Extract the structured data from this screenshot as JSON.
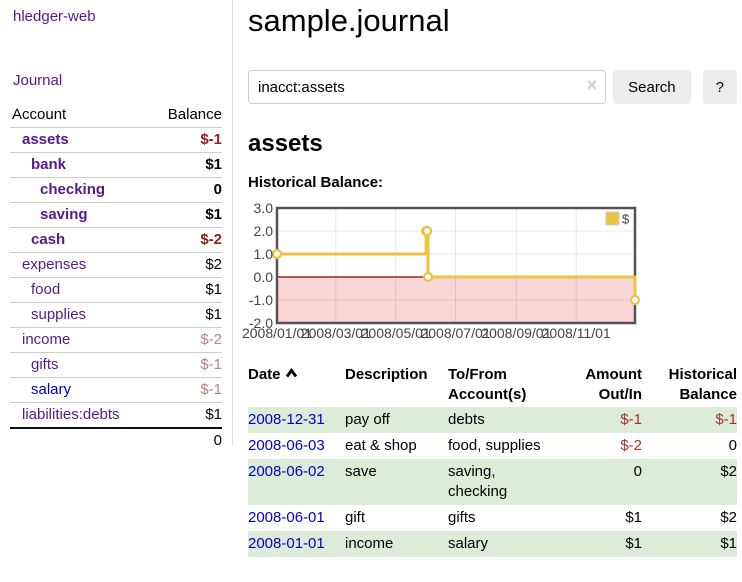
{
  "sidebar": {
    "brand": "hledger-web",
    "nav": [
      {
        "label": "Journal"
      }
    ],
    "accounts_table": {
      "headers": {
        "account": "Account",
        "balance": "Balance"
      },
      "rows": [
        {
          "name": "assets",
          "balance": "$-1"
        },
        {
          "name": "bank",
          "balance": "$1"
        },
        {
          "name": "checking",
          "balance": "0"
        },
        {
          "name": "saving",
          "balance": "$1"
        },
        {
          "name": "cash",
          "balance": "$-2"
        },
        {
          "name": "expenses",
          "balance": "$2"
        },
        {
          "name": "food",
          "balance": "$1"
        },
        {
          "name": "supplies",
          "balance": "$1"
        },
        {
          "name": "income",
          "balance": "$-2"
        },
        {
          "name": "gifts",
          "balance": "$-1"
        },
        {
          "name": "salary",
          "balance": "$-1"
        },
        {
          "name": "liabilities:debts",
          "balance": "$1"
        }
      ],
      "total": "0"
    }
  },
  "header": {
    "title": "sample.journal"
  },
  "search": {
    "value": "inacct:assets",
    "clear_icon": "×",
    "button": "Search",
    "help_button": "?"
  },
  "account_page": {
    "heading": "assets",
    "chart_label": "Historical Balance:"
  },
  "register": {
    "headers": {
      "date": "Date",
      "sort_icon": "chevron-up",
      "description": "Description",
      "accounts": "To/From Account(s)",
      "amount": "Amount Out/In",
      "balance": "Historical Balance"
    },
    "rows": [
      {
        "date": "2008-12-31",
        "description": "pay off",
        "accounts": "debts",
        "amount": "$-1",
        "balance": "$-1"
      },
      {
        "date": "2008-06-03",
        "description": "eat & shop",
        "accounts": "food, supplies",
        "amount": "$-2",
        "balance": "0"
      },
      {
        "date": "2008-06-02",
        "description": "save",
        "accounts": "saving, checking",
        "amount": "0",
        "balance": "$2"
      },
      {
        "date": "2008-06-01",
        "description": "gift",
        "accounts": "gifts",
        "amount": "$1",
        "balance": "$2"
      },
      {
        "date": "2008-01-01",
        "description": "income",
        "accounts": "salary",
        "amount": "$1",
        "balance": "$1"
      }
    ]
  },
  "colors": {
    "link_purple": "#551a8b",
    "link_blue": "#0000cc",
    "negative": "#a3312a",
    "negative_strong": "#8f231d",
    "negative_light": "#bd7e7e",
    "row_green": "#dcecd8",
    "chart_line": "#EDC240",
    "chart_negative_region": "#f9d7d7",
    "chart_zero_line": "#7a0000",
    "chart_border": "#545454"
  },
  "chart_data": {
    "type": "line",
    "title": "Historical Balance:",
    "step": true,
    "xlim": [
      "2008-01-01",
      "2008-12-31"
    ],
    "ylim": [
      -2,
      3
    ],
    "x_ticks": [
      "2008/01/01",
      "2008/03/01",
      "2008/05/01",
      "2008/07/01",
      "2008/09/01",
      "2008/11/01"
    ],
    "y_ticks": [
      3.0,
      2.0,
      1.0,
      0.0,
      -1.0,
      -2.0
    ],
    "grid": true,
    "legend": {
      "position": "top-right",
      "label": "$"
    },
    "series": [
      {
        "name": "$",
        "color": "#EDC240",
        "points": [
          [
            "2008-01-01",
            1
          ],
          [
            "2008-06-01",
            2
          ],
          [
            "2008-06-02",
            2
          ],
          [
            "2008-06-03",
            0
          ],
          [
            "2008-12-31",
            -1
          ]
        ]
      }
    ]
  }
}
